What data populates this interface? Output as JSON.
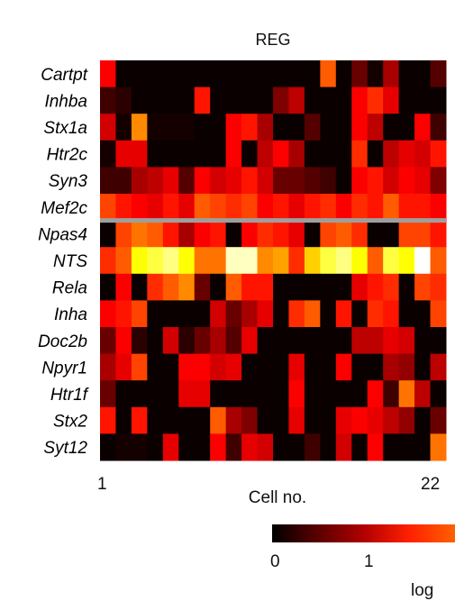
{
  "chart_data": {
    "type": "heatmap",
    "title": "REG",
    "xlabel": "Cell no.",
    "x_ticks": [
      "1",
      "22"
    ],
    "rows": [
      "Cartpt",
      "Inhba",
      "Stx1a",
      "Htr2c",
      "Syn3",
      "Mef2c",
      "Npas4",
      "NTS",
      "Rela",
      "Inha",
      "Doc2b",
      "Npyr1",
      "Htr1f",
      "Stx2",
      "Syt12"
    ],
    "separator_after_row": "Mef2c",
    "separator_color": "#9e9e9e",
    "colorbar": {
      "ticks": [
        "0",
        "1"
      ],
      "label": "log",
      "colors": [
        "#000000",
        "#5a0000",
        "#b00000",
        "#ff2000",
        "#ff6000"
      ]
    },
    "values": [
      [
        1.2,
        0.05,
        0.05,
        0.05,
        0.05,
        0.05,
        0.05,
        0.05,
        0.05,
        0.05,
        0.05,
        0.05,
        0.05,
        0.05,
        1.6,
        0.05,
        0.5,
        0.1,
        0.8,
        0.05,
        0.05,
        0.4
      ],
      [
        0.3,
        0.2,
        0.05,
        0.05,
        0.05,
        0.05,
        1.3,
        0.05,
        0.05,
        0.05,
        0.05,
        0.6,
        0.9,
        0.05,
        0.05,
        0.05,
        1.2,
        1.4,
        1.1,
        0.05,
        0.05,
        0.05
      ],
      [
        1.0,
        0.1,
        1.8,
        0.1,
        0.1,
        0.1,
        0.05,
        0.05,
        1.2,
        1.3,
        0.8,
        0.05,
        0.05,
        0.4,
        0.05,
        0.05,
        1.2,
        0.9,
        0.05,
        0.05,
        1.2,
        0.3
      ],
      [
        0.1,
        1.1,
        1.1,
        0.05,
        0.05,
        0.05,
        0.05,
        0.05,
        1.2,
        0.05,
        0.9,
        1.2,
        0.8,
        0.05,
        0.05,
        0.05,
        1.4,
        0.05,
        0.9,
        1.1,
        1.0,
        1.3
      ],
      [
        0.3,
        0.3,
        0.8,
        0.9,
        1.1,
        0.4,
        1.2,
        1.0,
        1.1,
        1.3,
        1.0,
        0.5,
        0.5,
        0.4,
        0.3,
        0.05,
        1.2,
        1.3,
        1.0,
        1.2,
        1.1,
        0.6
      ],
      [
        1.5,
        1.3,
        1.2,
        1.1,
        1.3,
        1.1,
        1.6,
        1.5,
        1.4,
        1.5,
        1.2,
        1.3,
        1.1,
        1.3,
        1.4,
        1.2,
        1.4,
        1.3,
        1.6,
        1.3,
        1.3,
        1.2
      ],
      [
        0.05,
        1.5,
        1.7,
        1.6,
        1.3,
        0.8,
        1.2,
        1.3,
        0.05,
        1.2,
        1.4,
        1.3,
        1.1,
        0.05,
        1.5,
        1.6,
        1.4,
        0.05,
        0.05,
        1.5,
        1.5,
        1.3
      ],
      [
        1.4,
        1.6,
        2.3,
        2.4,
        2.5,
        2.3,
        1.7,
        1.7,
        2.6,
        2.6,
        1.8,
        1.9,
        1.4,
        2.1,
        2.4,
        2.5,
        2.3,
        1.6,
        2.4,
        2.3,
        2.7,
        1.6
      ],
      [
        0.05,
        1.2,
        0.05,
        1.4,
        1.6,
        1.8,
        0.5,
        0.05,
        1.6,
        1.3,
        1.3,
        0.05,
        0.05,
        0.05,
        0.05,
        0.05,
        1.1,
        1.3,
        1.4,
        0.05,
        1.5,
        1.4
      ],
      [
        1.2,
        1.3,
        1.5,
        0.05,
        0.05,
        0.05,
        0.05,
        1.0,
        0.5,
        0.8,
        1.1,
        0.05,
        1.4,
        1.6,
        0.05,
        1.3,
        0.05,
        1.4,
        1.3,
        0.05,
        0.05,
        1.5
      ],
      [
        0.5,
        1.2,
        0.2,
        0.05,
        1.0,
        0.2,
        0.5,
        0.8,
        0.4,
        1.1,
        0.05,
        0.05,
        0.05,
        0.05,
        0.05,
        0.05,
        0.9,
        0.9,
        1.1,
        1.0,
        0.05,
        0.05
      ],
      [
        0.8,
        1.1,
        1.5,
        0.05,
        0.05,
        1.2,
        1.2,
        1.0,
        1.1,
        0.05,
        0.05,
        0.05,
        1.1,
        0.05,
        0.05,
        1.2,
        0.05,
        0.05,
        0.8,
        0.7,
        0.05,
        0.9
      ],
      [
        0.5,
        0.05,
        0.05,
        0.05,
        0.05,
        1.1,
        1.1,
        0.05,
        0.05,
        0.05,
        0.05,
        0.05,
        1.2,
        0.05,
        0.05,
        0.05,
        0.05,
        1.2,
        0.3,
        1.7,
        0.9,
        0.05
      ],
      [
        1.3,
        0.05,
        1.3,
        0.05,
        0.05,
        0.05,
        0.05,
        1.6,
        0.8,
        0.6,
        0.05,
        0.05,
        1.1,
        0.05,
        0.05,
        1.1,
        1.2,
        1.1,
        0.9,
        0.7,
        0.05,
        0.5
      ],
      [
        0.05,
        0.1,
        0.1,
        0.05,
        1.1,
        0.05,
        0.05,
        1.2,
        0.3,
        1.1,
        1.0,
        0.05,
        0.05,
        0.3,
        0.05,
        1.0,
        0.05,
        1.2,
        0.05,
        0.05,
        0.05,
        1.7
      ]
    ]
  }
}
